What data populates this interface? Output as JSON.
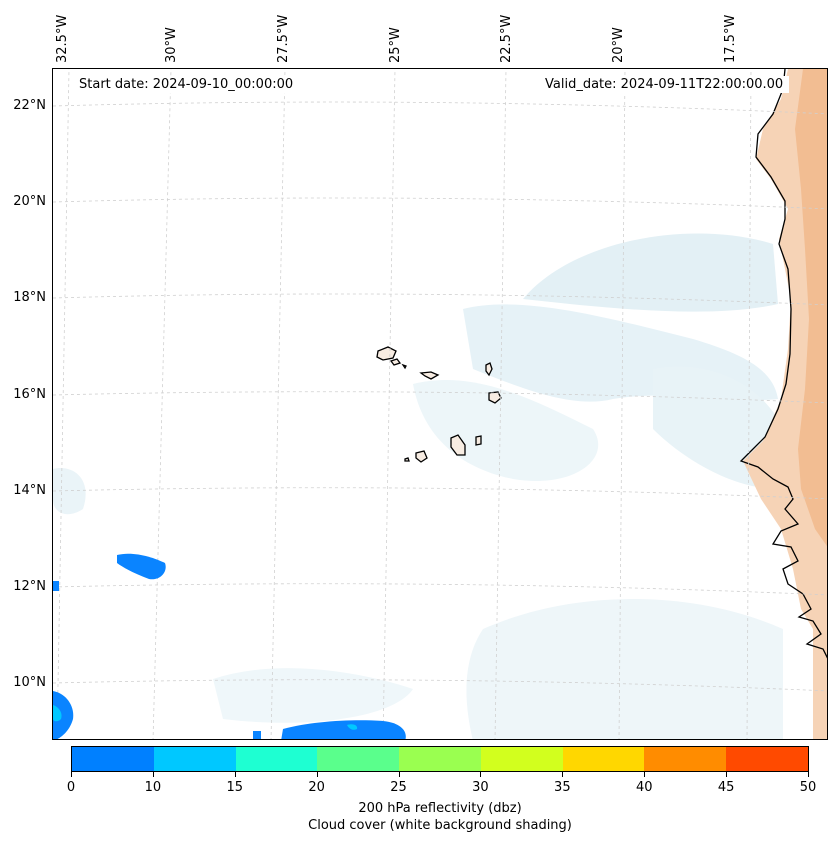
{
  "map": {
    "lon_labels": [
      "32.5°W",
      "30°W",
      "27.5°W",
      "25°W",
      "22.5°W",
      "20°W",
      "17.5°W"
    ],
    "lat_labels": [
      "22°N",
      "20°N",
      "18°N",
      "16°N",
      "14°N",
      "12°N",
      "10°N"
    ],
    "start_date": "Start date: 2024-09-10_00:00:00",
    "valid_date": "Valid_date: 2024-09-11T22:00:00.00"
  },
  "colorbar": {
    "ticks": [
      "0",
      "10",
      "15",
      "20",
      "25",
      "30",
      "35",
      "40",
      "45",
      "50"
    ],
    "colors": [
      "#0080ff",
      "#00c8ff",
      "#1effd2",
      "#5aff8c",
      "#9aff50",
      "#d2ff1e",
      "#ffd700",
      "#ff8c00",
      "#ff4a00"
    ],
    "title_line1": "200 hPa reflectivity (dbz)",
    "title_line2": "Cloud cover (white background shading)"
  },
  "colors": {
    "cloud_light": "#e6f2f7",
    "cloud_mid": "#cfe6ee",
    "land_fill": "#f6d2b4",
    "land_dark": "#f1b98c",
    "reflectivity_low": "#0a84ff",
    "reflectivity_mid": "#00c8ff",
    "coastline": "#000000",
    "grid": "#d0d0d0"
  }
}
